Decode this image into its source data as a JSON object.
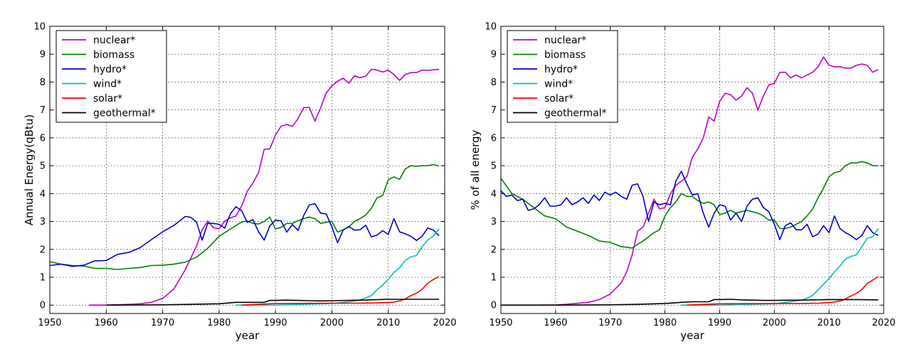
{
  "chart_data": [
    {
      "type": "line",
      "xlabel": "year",
      "ylabel": "Annual Energy(qBtu)",
      "xlim": [
        1950,
        2020
      ],
      "ylim": [
        0,
        10
      ],
      "xticks": [
        "1950",
        "1960",
        "1970",
        "1980",
        "1990",
        "2000",
        "2010",
        "2020"
      ],
      "yticks": [
        "0",
        "1",
        "2",
        "3",
        "4",
        "5",
        "6",
        "7",
        "8",
        "9",
        "10"
      ],
      "grid": true,
      "legend_position": "top-left",
      "series": [
        {
          "name": "nuclear*",
          "color": "#bf00bf",
          "x": [
            1957,
            1960,
            1963,
            1966,
            1968,
            1970,
            1972,
            1974,
            1976,
            1977,
            1978,
            1979,
            1980,
            1981,
            1982,
            1983,
            1984,
            1985,
            1986,
            1987,
            1988,
            1989,
            1990,
            1991,
            1992,
            1993,
            1994,
            1995,
            1996,
            1997,
            1998,
            1999,
            2000,
            2001,
            2002,
            2003,
            2004,
            2005,
            2006,
            2007,
            2008,
            2009,
            2010,
            2011,
            2012,
            2013,
            2014,
            2015,
            2016,
            2017,
            2018,
            2019
          ],
          "y": [
            0,
            0,
            0.02,
            0.05,
            0.1,
            0.24,
            0.58,
            1.27,
            2.11,
            2.7,
            3.02,
            2.78,
            2.74,
            3.01,
            3.13,
            3.2,
            3.55,
            4.08,
            4.38,
            4.75,
            5.59,
            5.6,
            6.1,
            6.42,
            6.48,
            6.41,
            6.69,
            7.08,
            7.09,
            6.6,
            7.07,
            7.61,
            7.86,
            8.03,
            8.14,
            7.96,
            8.22,
            8.16,
            8.21,
            8.46,
            8.43,
            8.36,
            8.43,
            8.27,
            8.06,
            8.27,
            8.34,
            8.34,
            8.43,
            8.42,
            8.44,
            8.46
          ]
        },
        {
          "name": "biomass",
          "color": "#008000",
          "x": [
            1950,
            1952,
            1954,
            1956,
            1958,
            1960,
            1962,
            1964,
            1966,
            1968,
            1970,
            1972,
            1974,
            1976,
            1978,
            1980,
            1982,
            1984,
            1985,
            1986,
            1987,
            1988,
            1989,
            1990,
            1991,
            1992,
            1993,
            1994,
            1995,
            1996,
            1997,
            1998,
            1999,
            2000,
            2001,
            2002,
            2003,
            2004,
            2005,
            2006,
            2007,
            2008,
            2009,
            2010,
            2011,
            2012,
            2013,
            2014,
            2015,
            2016,
            2017,
            2018,
            2019
          ],
          "y": [
            1.56,
            1.47,
            1.42,
            1.4,
            1.32,
            1.32,
            1.28,
            1.32,
            1.35,
            1.42,
            1.43,
            1.47,
            1.54,
            1.72,
            2.04,
            2.47,
            2.73,
            2.98,
            3.02,
            2.93,
            2.91,
            3.0,
            3.16,
            2.73,
            2.79,
            2.93,
            2.93,
            3.03,
            3.1,
            3.16,
            3.1,
            2.93,
            2.97,
            3.01,
            2.62,
            2.7,
            2.8,
            3.0,
            3.1,
            3.23,
            3.47,
            3.85,
            3.93,
            4.5,
            4.6,
            4.51,
            4.88,
            5.0,
            4.98,
            5.0,
            5.0,
            5.04,
            4.99
          ]
        },
        {
          "name": "hydro*",
          "color": "#0000cc",
          "x": [
            1950,
            1952,
            1954,
            1956,
            1958,
            1960,
            1962,
            1964,
            1966,
            1968,
            1970,
            1972,
            1974,
            1975,
            1976,
            1977,
            1978,
            1979,
            1980,
            1981,
            1982,
            1983,
            1984,
            1985,
            1986,
            1987,
            1988,
            1989,
            1990,
            1991,
            1992,
            1993,
            1994,
            1995,
            1996,
            1997,
            1998,
            1999,
            2000,
            2001,
            2002,
            2003,
            2004,
            2005,
            2006,
            2007,
            2008,
            2009,
            2010,
            2011,
            2012,
            2013,
            2014,
            2015,
            2016,
            2017,
            2018,
            2019
          ],
          "y": [
            1.42,
            1.47,
            1.39,
            1.43,
            1.59,
            1.6,
            1.82,
            1.89,
            2.06,
            2.35,
            2.63,
            2.86,
            3.18,
            3.15,
            2.98,
            2.33,
            2.94,
            2.93,
            2.9,
            2.76,
            3.27,
            3.53,
            3.39,
            2.97,
            3.07,
            2.63,
            2.33,
            2.84,
            3.05,
            3.02,
            2.62,
            2.89,
            2.68,
            3.21,
            3.59,
            3.64,
            3.3,
            3.27,
            2.81,
            2.24,
            2.69,
            2.82,
            2.69,
            2.7,
            2.87,
            2.45,
            2.51,
            2.67,
            2.54,
            3.1,
            2.63,
            2.56,
            2.47,
            2.32,
            2.47,
            2.77,
            2.69,
            2.49
          ]
        },
        {
          "name": "wind*",
          "color": "#00bfbf",
          "x": [
            1983,
            1990,
            2000,
            2003,
            2005,
            2006,
            2007,
            2008,
            2009,
            2010,
            2011,
            2012,
            2013,
            2014,
            2015,
            2016,
            2017,
            2018,
            2019
          ],
          "y": [
            0,
            0,
            0.06,
            0.12,
            0.18,
            0.26,
            0.34,
            0.55,
            0.72,
            0.92,
            1.17,
            1.34,
            1.6,
            1.73,
            1.78,
            2.1,
            2.34,
            2.48,
            2.74
          ]
        },
        {
          "name": "solar*",
          "color": "#ff0000",
          "x": [
            1984,
            1990,
            2000,
            2005,
            2008,
            2009,
            2010,
            2011,
            2012,
            2013,
            2014,
            2015,
            2016,
            2017,
            2018,
            2019
          ],
          "y": [
            0.0,
            0.06,
            0.07,
            0.07,
            0.08,
            0.09,
            0.09,
            0.11,
            0.15,
            0.22,
            0.34,
            0.43,
            0.57,
            0.78,
            0.92,
            1.02
          ]
        },
        {
          "name": "geothermal*",
          "color": "#000000",
          "x": [
            1960,
            1970,
            1975,
            1980,
            1983,
            1985,
            1988,
            1989,
            1990,
            1992,
            1994,
            1996,
            1998,
            2000,
            2005,
            2010,
            2015,
            2019
          ],
          "y": [
            0,
            0.01,
            0.03,
            0.05,
            0.1,
            0.1,
            0.1,
            0.17,
            0.17,
            0.18,
            0.17,
            0.16,
            0.15,
            0.16,
            0.18,
            0.21,
            0.21,
            0.21
          ]
        }
      ]
    },
    {
      "type": "line",
      "xlabel": "year",
      "ylabel": "% of all energy",
      "xlim": [
        1950,
        2020
      ],
      "ylim": [
        0,
        10
      ],
      "xticks": [
        "1950",
        "1960",
        "1970",
        "1980",
        "1990",
        "2000",
        "2010",
        "2020"
      ],
      "yticks": [
        "0",
        "1",
        "2",
        "3",
        "4",
        "5",
        "6",
        "7",
        "8",
        "9",
        "10"
      ],
      "grid": true,
      "legend_position": "top-left",
      "series": [
        {
          "name": "nuclear*",
          "color": "#bf00bf",
          "x": [
            1957,
            1960,
            1963,
            1966,
            1968,
            1970,
            1972,
            1973,
            1974,
            1975,
            1976,
            1977,
            1978,
            1979,
            1980,
            1981,
            1982,
            1983,
            1984,
            1985,
            1986,
            1987,
            1988,
            1989,
            1990,
            1991,
            1992,
            1993,
            1994,
            1995,
            1996,
            1997,
            1998,
            1999,
            2000,
            2001,
            2002,
            2003,
            2004,
            2005,
            2006,
            2007,
            2008,
            2009,
            2010,
            2011,
            2012,
            2013,
            2014,
            2015,
            2016,
            2017,
            2018,
            2019
          ],
          "y": [
            0,
            0,
            0.05,
            0.1,
            0.2,
            0.4,
            0.8,
            1.2,
            1.8,
            2.65,
            2.8,
            3.3,
            3.8,
            3.45,
            3.5,
            4.0,
            4.3,
            4.45,
            4.6,
            5.3,
            5.6,
            6.0,
            6.75,
            6.6,
            7.3,
            7.6,
            7.55,
            7.35,
            7.5,
            7.8,
            7.6,
            7.0,
            7.5,
            7.9,
            7.95,
            8.35,
            8.35,
            8.15,
            8.25,
            8.15,
            8.25,
            8.35,
            8.55,
            8.9,
            8.6,
            8.55,
            8.55,
            8.5,
            8.5,
            8.6,
            8.65,
            8.6,
            8.35,
            8.45
          ]
        },
        {
          "name": "biomass",
          "color": "#008000",
          "x": [
            1950,
            1952,
            1954,
            1956,
            1958,
            1960,
            1962,
            1964,
            1966,
            1968,
            1970,
            1972,
            1974,
            1976,
            1978,
            1979,
            1980,
            1981,
            1982,
            1983,
            1984,
            1985,
            1986,
            1987,
            1988,
            1989,
            1990,
            1991,
            1992,
            1993,
            1994,
            1995,
            1996,
            1997,
            1998,
            1999,
            2000,
            2001,
            2002,
            2003,
            2004,
            2005,
            2006,
            2007,
            2008,
            2009,
            2010,
            2011,
            2012,
            2013,
            2014,
            2015,
            2016,
            2017,
            2018,
            2019
          ],
          "y": [
            4.55,
            4.0,
            3.8,
            3.5,
            3.2,
            3.1,
            2.8,
            2.65,
            2.5,
            2.3,
            2.25,
            2.1,
            2.05,
            2.3,
            2.6,
            2.7,
            3.2,
            3.5,
            3.7,
            4.0,
            3.9,
            3.9,
            3.75,
            3.65,
            3.7,
            3.6,
            3.25,
            3.3,
            3.4,
            3.3,
            3.35,
            3.4,
            3.35,
            3.3,
            3.2,
            3.05,
            3.05,
            2.75,
            2.75,
            2.8,
            2.9,
            3.0,
            3.2,
            3.45,
            3.85,
            4.2,
            4.6,
            4.75,
            4.8,
            5.0,
            5.1,
            5.1,
            5.15,
            5.1,
            5.0,
            5.0
          ]
        },
        {
          "name": "hydro*",
          "color": "#0000cc",
          "x": [
            1950,
            1951,
            1952,
            1953,
            1954,
            1955,
            1956,
            1957,
            1958,
            1959,
            1960,
            1961,
            1962,
            1963,
            1964,
            1965,
            1966,
            1967,
            1968,
            1969,
            1970,
            1971,
            1972,
            1973,
            1974,
            1975,
            1976,
            1977,
            1978,
            1979,
            1980,
            1981,
            1982,
            1983,
            1984,
            1985,
            1986,
            1987,
            1988,
            1989,
            1990,
            1991,
            1992,
            1993,
            1994,
            1995,
            1996,
            1997,
            1998,
            1999,
            2000,
            2001,
            2002,
            2003,
            2004,
            2005,
            2006,
            2007,
            2008,
            2009,
            2010,
            2011,
            2012,
            2013,
            2014,
            2015,
            2016,
            2017,
            2018,
            2019
          ],
          "y": [
            4.1,
            3.9,
            3.95,
            3.75,
            3.8,
            3.4,
            3.45,
            3.6,
            3.85,
            3.55,
            3.55,
            3.6,
            3.85,
            3.6,
            3.7,
            3.85,
            3.65,
            3.95,
            3.75,
            4.05,
            3.95,
            4.05,
            3.9,
            3.8,
            4.3,
            4.35,
            3.9,
            3.0,
            3.7,
            3.6,
            3.65,
            3.6,
            4.45,
            4.8,
            4.35,
            3.95,
            4.0,
            3.3,
            2.8,
            3.3,
            3.6,
            3.55,
            3.05,
            3.3,
            3.0,
            3.55,
            3.8,
            3.85,
            3.5,
            3.35,
            2.9,
            2.35,
            2.85,
            2.95,
            2.7,
            2.7,
            2.9,
            2.45,
            2.55,
            2.85,
            2.6,
            3.2,
            2.75,
            2.6,
            2.5,
            2.35,
            2.5,
            2.85,
            2.6,
            2.5
          ]
        },
        {
          "name": "wind*",
          "color": "#00bfbf",
          "x": [
            1983,
            1990,
            2000,
            2003,
            2005,
            2006,
            2007,
            2008,
            2009,
            2010,
            2011,
            2012,
            2013,
            2014,
            2015,
            2016,
            2017,
            2018,
            2019
          ],
          "y": [
            0,
            0,
            0.05,
            0.12,
            0.18,
            0.25,
            0.35,
            0.55,
            0.75,
            0.95,
            1.2,
            1.4,
            1.65,
            1.75,
            1.8,
            2.1,
            2.4,
            2.45,
            2.75
          ]
        },
        {
          "name": "solar*",
          "color": "#ff0000",
          "x": [
            1984,
            1990,
            2000,
            2005,
            2008,
            2009,
            2010,
            2011,
            2012,
            2013,
            2014,
            2015,
            2016,
            2017,
            2018,
            2019
          ],
          "y": [
            0,
            0.05,
            0.06,
            0.06,
            0.07,
            0.08,
            0.09,
            0.11,
            0.15,
            0.22,
            0.33,
            0.42,
            0.56,
            0.78,
            0.9,
            1.02
          ]
        },
        {
          "name": "geothermal*",
          "color": "#000000",
          "x": [
            1950,
            1960,
            1970,
            1975,
            1980,
            1983,
            1985,
            1988,
            1989,
            1990,
            1992,
            1994,
            1996,
            1998,
            2000,
            2005,
            2010,
            2015,
            2019
          ],
          "y": [
            0,
            0,
            0.01,
            0.03,
            0.06,
            0.1,
            0.12,
            0.12,
            0.2,
            0.2,
            0.21,
            0.19,
            0.18,
            0.17,
            0.17,
            0.18,
            0.2,
            0.2,
            0.19
          ]
        }
      ]
    }
  ]
}
